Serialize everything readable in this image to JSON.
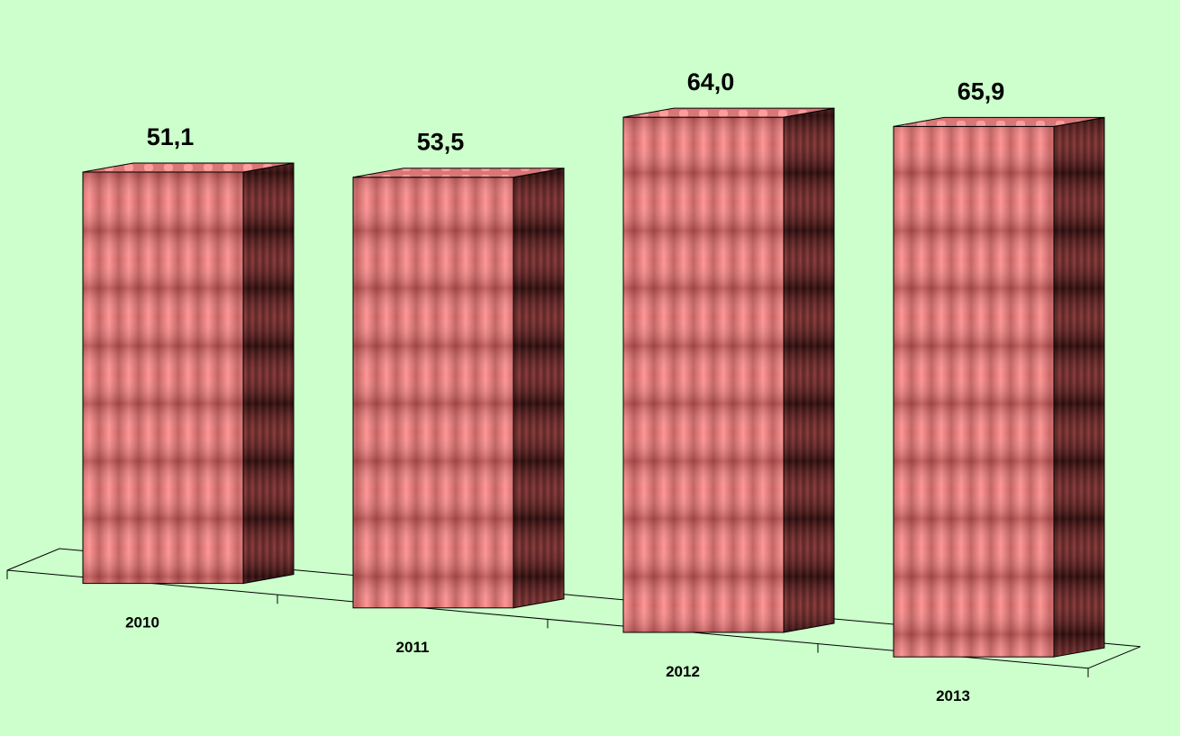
{
  "chart_data": {
    "type": "bar",
    "categories": [
      "2010",
      "2011",
      "2012",
      "2013"
    ],
    "values": [
      51.1,
      53.5,
      64.0,
      65.9
    ],
    "data_labels": [
      "51,1",
      "53,5",
      "64,0",
      "65,9"
    ],
    "title": "",
    "xlabel": "",
    "ylabel": "",
    "ylim": [
      0,
      70
    ],
    "grid": false,
    "legend": "none",
    "style": "3d-column"
  },
  "colors": {
    "background": "#ccffcc",
    "bar_light": "#ff8a8a",
    "bar_mid": "#d96a6a",
    "bar_dark": "#3a1414",
    "floor_line": "#000000"
  }
}
